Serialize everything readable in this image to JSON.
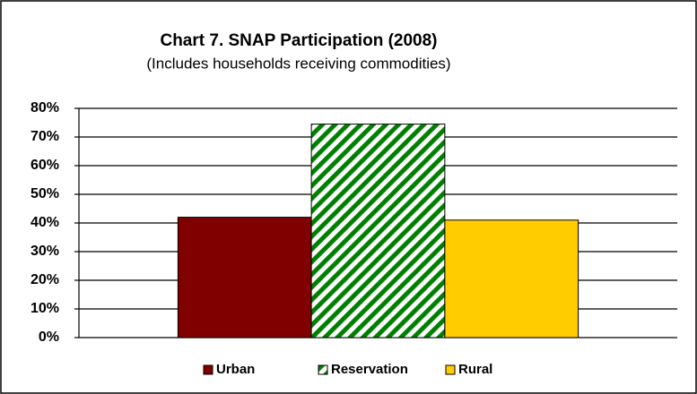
{
  "chart_data": {
    "type": "bar",
    "title": "Chart 7. SNAP Participation (2008)",
    "subtitle": "(Includes households receiving commodities)",
    "categories": [
      null
    ],
    "series": [
      {
        "name": "Urban",
        "color": "#800000",
        "values": [
          42
        ]
      },
      {
        "name": "Reservation",
        "color": "#008000",
        "pattern": "diagonal-stripes",
        "values": [
          74.5
        ]
      },
      {
        "name": "Rural",
        "color": "#ffcc00",
        "values": [
          41
        ]
      }
    ],
    "ylim": [
      0,
      80
    ],
    "yticks": [
      {
        "value": 0,
        "label": "0%"
      },
      {
        "value": 10,
        "label": "10%"
      },
      {
        "value": 20,
        "label": "20%"
      },
      {
        "value": 30,
        "label": "30%"
      },
      {
        "value": 40,
        "label": "40%"
      },
      {
        "value": 50,
        "label": "50%"
      },
      {
        "value": 60,
        "label": "60%"
      },
      {
        "value": 70,
        "label": "70%"
      },
      {
        "value": 80,
        "label": "80%"
      }
    ],
    "grid": true,
    "legend": "bottom"
  }
}
